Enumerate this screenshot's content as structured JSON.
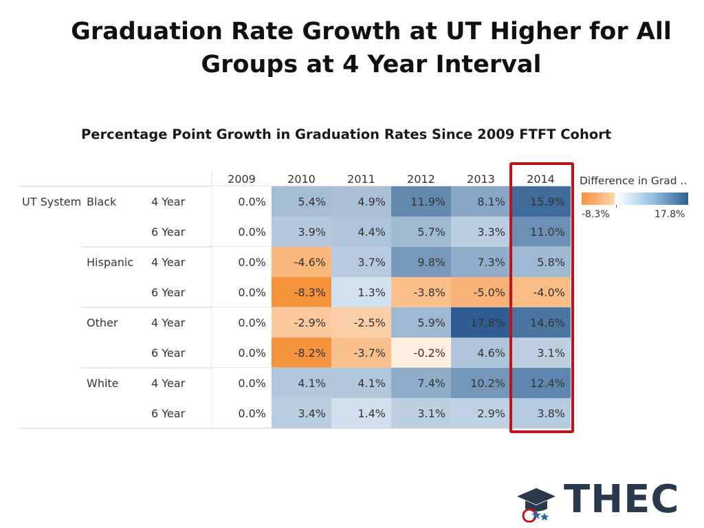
{
  "title_line1": "Graduation Rate Growth at UT Higher for All",
  "title_line2": "Groups at 4 Year Interval",
  "subtitle": "Percentage Point Growth in Graduation Rates Since 2009 FTFT Cohort",
  "legend": {
    "title": "Difference in Grad ..",
    "min_label": "-8.3%",
    "max_label": "17.8%"
  },
  "logo": {
    "text": "THEC"
  },
  "colors": {
    "neg_max": "#f5923c",
    "neutral": "#ffffff",
    "pos_max": "#2f5f92",
    "highlight": "#c0121a"
  },
  "chart_data": {
    "type": "heatmap",
    "system_label": "UT System",
    "columns": [
      "2009",
      "2010",
      "2011",
      "2012",
      "2013",
      "2014"
    ],
    "value_range": [
      -8.3,
      17.8
    ],
    "highlighted_column": "2014",
    "groups": [
      {
        "name": "Black",
        "rows": [
          {
            "interval": "4 Year",
            "values": [
              0.0,
              5.4,
              4.9,
              11.9,
              8.1,
              15.9
            ]
          },
          {
            "interval": "6 Year",
            "values": [
              0.0,
              3.9,
              4.4,
              5.7,
              3.3,
              11.0
            ]
          }
        ]
      },
      {
        "name": "Hispanic",
        "rows": [
          {
            "interval": "4 Year",
            "values": [
              0.0,
              -4.6,
              3.7,
              9.8,
              7.3,
              5.8
            ]
          },
          {
            "interval": "6 Year",
            "values": [
              0.0,
              -8.3,
              1.3,
              -3.8,
              -5.0,
              -4.0
            ]
          }
        ]
      },
      {
        "name": "Other",
        "rows": [
          {
            "interval": "4 Year",
            "values": [
              0.0,
              -2.9,
              -2.5,
              5.9,
              17.8,
              14.6
            ]
          },
          {
            "interval": "6 Year",
            "values": [
              0.0,
              -8.2,
              -3.7,
              -0.2,
              4.6,
              3.1
            ]
          }
        ]
      },
      {
        "name": "White",
        "rows": [
          {
            "interval": "4 Year",
            "values": [
              0.0,
              4.1,
              4.1,
              7.4,
              10.2,
              12.4
            ]
          },
          {
            "interval": "6 Year",
            "values": [
              0.0,
              3.4,
              1.4,
              3.1,
              2.9,
              3.8
            ]
          }
        ]
      }
    ]
  }
}
